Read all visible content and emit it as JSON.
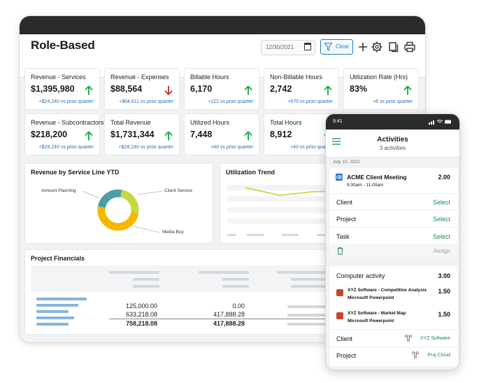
{
  "header": {
    "title": "Role-Based",
    "date": "12/30/2021",
    "clear_label": "Clear",
    "icons": [
      "calendar-icon",
      "filter-icon",
      "plus-icon",
      "gear-icon",
      "copy-icon",
      "print-icon"
    ]
  },
  "colors": {
    "up_arrow": "#22b24c",
    "down_arrow": "#c8353a",
    "delta_text": "#2a6fb0",
    "accent_green": "#1f8a4c",
    "donut": [
      "#f5b800",
      "#c5d83e",
      "#4a9fa3"
    ]
  },
  "kpis": [
    {
      "label": "Revenue - Services",
      "value": "$1,395,980",
      "trend": "up",
      "delta": "+$24,240 vs prior quarter"
    },
    {
      "label": "Revenue - Expenses",
      "value": "$88,564",
      "trend": "down",
      "delta": "+$64,611 vs prior quarter"
    },
    {
      "label": "Billable Hours",
      "value": "6,170",
      "trend": "up",
      "delta": "+122 vs prior quarter"
    },
    {
      "label": "Non-Billable Hours",
      "value": "2,742",
      "trend": "up",
      "delta": "+570 vs prior quarter"
    },
    {
      "label": "Utilization Rate (Hrs)",
      "value": "83%",
      "trend": "up",
      "delta": "+6 vs prior quarter"
    },
    {
      "label": "Revenue - Subcontractors",
      "value": "$218,200",
      "trend": "up",
      "delta": "+$28,240 vs prior quarter"
    },
    {
      "label": "Total Revenue",
      "value": "$1,731,344",
      "trend": "up",
      "delta": "+$28,240 vs prior quarter"
    },
    {
      "label": "Utilized Hours",
      "value": "7,448",
      "trend": "up",
      "delta": "+40 vs prior quarter"
    },
    {
      "label": "Total Hours",
      "value": "8,912",
      "trend": "up",
      "delta": "+40 vs prior quarter"
    }
  ],
  "revenue_panel": {
    "title": "Revenue by Service Line YTD",
    "labels": {
      "amount_planning": "Amount Planning",
      "client_service": "Client Service",
      "media_buy": "Media Buy"
    }
  },
  "utilization_panel": {
    "title": "Utilization Trend"
  },
  "project_financials": {
    "title": "Project Financials",
    "col1": [
      "125,000.00",
      "633,218.08",
      "758,218.08"
    ],
    "col2": [
      "0.00",
      "417,888.28",
      "417,888.28"
    ]
  },
  "phone": {
    "time": "9:41",
    "title": "Activities",
    "subtitle": "3 activities",
    "date": "July 10, 2022",
    "meeting": {
      "title": "ACME Client Meeting",
      "time": "9.00am - 11.00am",
      "hours": "2.00"
    },
    "fields": [
      {
        "label": "Client",
        "action": "Select"
      },
      {
        "label": "Project",
        "action": "Select"
      },
      {
        "label": "Task",
        "action": "Select"
      }
    ],
    "assign_label": "Assign",
    "computer_activity": {
      "label": "Computer activity",
      "hours": "3.00"
    },
    "items": [
      {
        "title": "XYZ Software - Competitive Analysis",
        "app": "Microsoft Powerpoint",
        "hours": "1.50"
      },
      {
        "title": "XYZ Software - Market Map",
        "app": "Microsoft Powerpoint",
        "hours": "1.50"
      }
    ],
    "client": {
      "label": "Client",
      "value": "XYZ Software"
    },
    "project": {
      "label": "Project",
      "value": "Proj Cloud"
    }
  }
}
